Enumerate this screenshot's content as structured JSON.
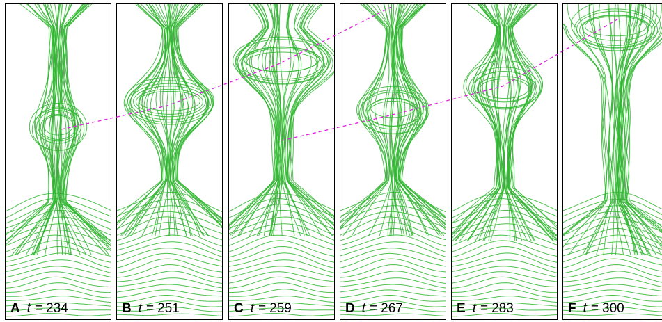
{
  "panels": [
    {
      "letter": "A",
      "variable": "t",
      "relation": "=",
      "time": 234
    },
    {
      "letter": "B",
      "variable": "t",
      "relation": "=",
      "time": 251
    },
    {
      "letter": "C",
      "variable": "t",
      "relation": "=",
      "time": 259
    },
    {
      "letter": "D",
      "variable": "t",
      "relation": "=",
      "time": 267
    },
    {
      "letter": "E",
      "variable": "t",
      "relation": "=",
      "time": 283
    },
    {
      "letter": "F",
      "variable": "t",
      "relation": "=",
      "time": 300
    }
  ]
}
